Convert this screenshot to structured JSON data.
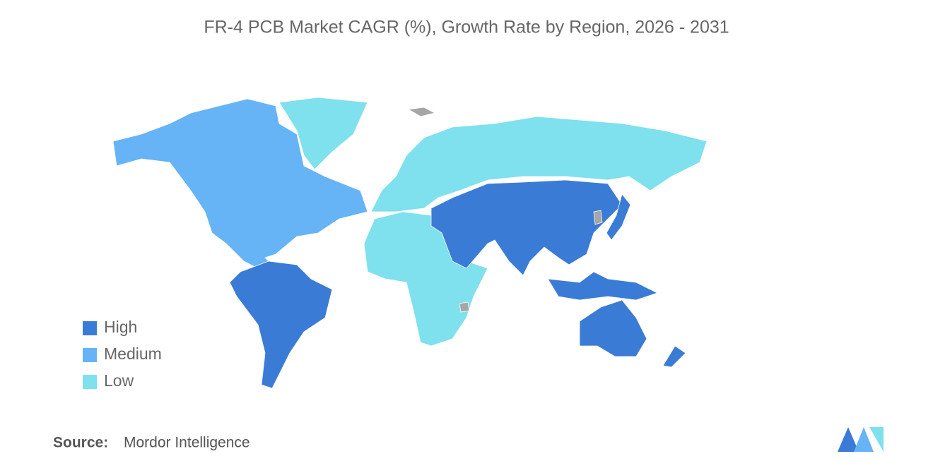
{
  "title": "FR-4 PCB Market CAGR (%), Growth Rate by Region, 2026 - 2031",
  "legend": [
    {
      "label": "High",
      "color": "#3a7bd6"
    },
    {
      "label": "Medium",
      "color": "#66b3f5"
    },
    {
      "label": "Low",
      "color": "#7fe0ee"
    }
  ],
  "no_data_color": "#a6a6a6",
  "source": {
    "label": "Source:",
    "text": "Mordor Intelligence"
  }
}
